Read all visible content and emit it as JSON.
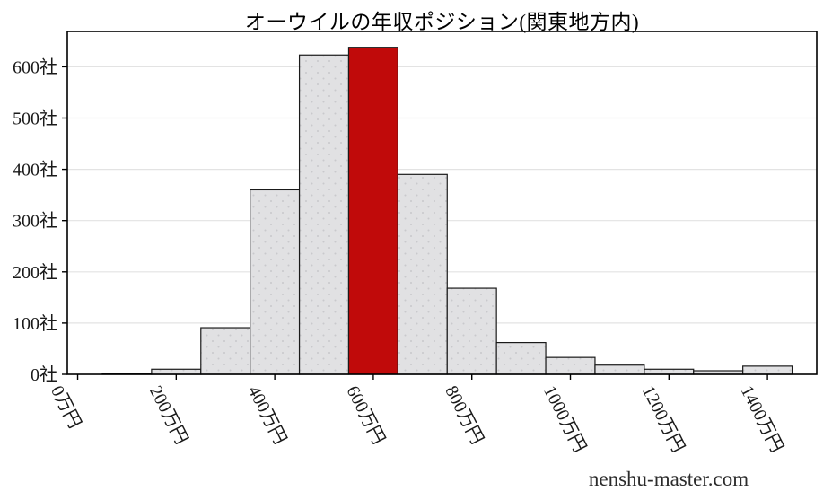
{
  "watermark": "nenshu-master.com",
  "chart_data": {
    "type": "bar",
    "subtype": "histogram",
    "title": "オーウイルの年収ポジション(関東地方内)",
    "xlabel": "",
    "ylabel": "",
    "x": [
      100,
      200,
      300,
      400,
      500,
      600,
      700,
      800,
      900,
      1000,
      1100,
      1200,
      1300,
      1400
    ],
    "values": [
      2,
      10,
      91,
      360,
      623,
      638,
      390,
      168,
      62,
      33,
      18,
      10,
      7,
      16
    ],
    "bin_width": 100,
    "highlight_index": 5,
    "highlight_meaning": "company-position-bar",
    "x_ticks": [
      0,
      200,
      400,
      600,
      800,
      1000,
      1200,
      1400
    ],
    "x_tick_labels": [
      "0万円",
      "200万円",
      "400万円",
      "600万円",
      "800万円",
      "1000万円",
      "1200万円",
      "1400万円"
    ],
    "y_ticks": [
      0,
      100,
      200,
      300,
      400,
      500,
      600
    ],
    "y_tick_labels": [
      "0社",
      "100社",
      "200社",
      "300社",
      "400社",
      "500社",
      "600社"
    ],
    "xlim": [
      -21,
      1500
    ],
    "ylim": [
      0,
      669
    ],
    "grid": "horizontal",
    "legend": "none",
    "x_tick_label_rotation_deg": 63,
    "colors": {
      "background": "#ffffff",
      "bar_fill": "#e1e1e3",
      "bar_dot": "#c9c9cc",
      "bar_edge": "#1a1a1a",
      "highlight": "#c00a0a",
      "grid": "#e3e3e3",
      "axis": "#000000",
      "text": "#1a1a1a",
      "watermark_text": "#2b2b2b"
    }
  }
}
